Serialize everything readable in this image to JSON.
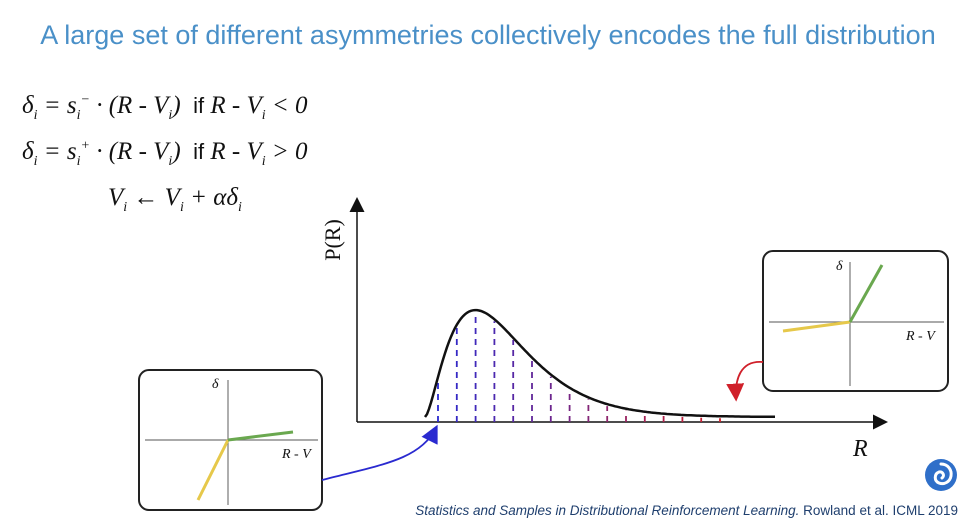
{
  "title": "A large set of different asymmetries collectively encodes the full distribution",
  "equations": {
    "eq1": {
      "lhs": "δ",
      "sub": "i",
      "eq": " = s",
      "s_sub": "i",
      "s_sup": "−",
      "mid": " · (R - V",
      "v_sub": "i",
      "close": ")",
      "cond": "if",
      "cond_expr": " R - V",
      "cond_sub": "i",
      "cond_tail": " < 0"
    },
    "eq2": {
      "lhs": "δ",
      "sub": "i",
      "eq": " = s",
      "s_sub": "i",
      "s_sup": "+",
      "mid": " · (R - V",
      "v_sub": "i",
      "close": ")",
      "cond": "if",
      "cond_expr": " R - V",
      "cond_sub": "i",
      "cond_tail": " > 0"
    },
    "eq3": {
      "a": "V",
      "a_sub": "i",
      "arrow": " ← V",
      "b_sub": "i",
      "tail": " + αδ",
      "t_sub": "i"
    }
  },
  "main_plot": {
    "ylabel": "P(R)",
    "xlabel": "R"
  },
  "left_inset": {
    "ylabel": "δ",
    "xlabel": "R - V"
  },
  "right_inset": {
    "ylabel": "δ",
    "xlabel": "R - V"
  },
  "citation": {
    "italic": "Statistics and Samples in Distributional Reinforcement Learning.",
    "rest": " Rowland et al. ICML 2019"
  },
  "colors": {
    "title": "#4a90c8",
    "blue": "#2a2ad0",
    "red": "#d0202a",
    "green": "#6aa84f",
    "yellow": "#e6c84a"
  }
}
